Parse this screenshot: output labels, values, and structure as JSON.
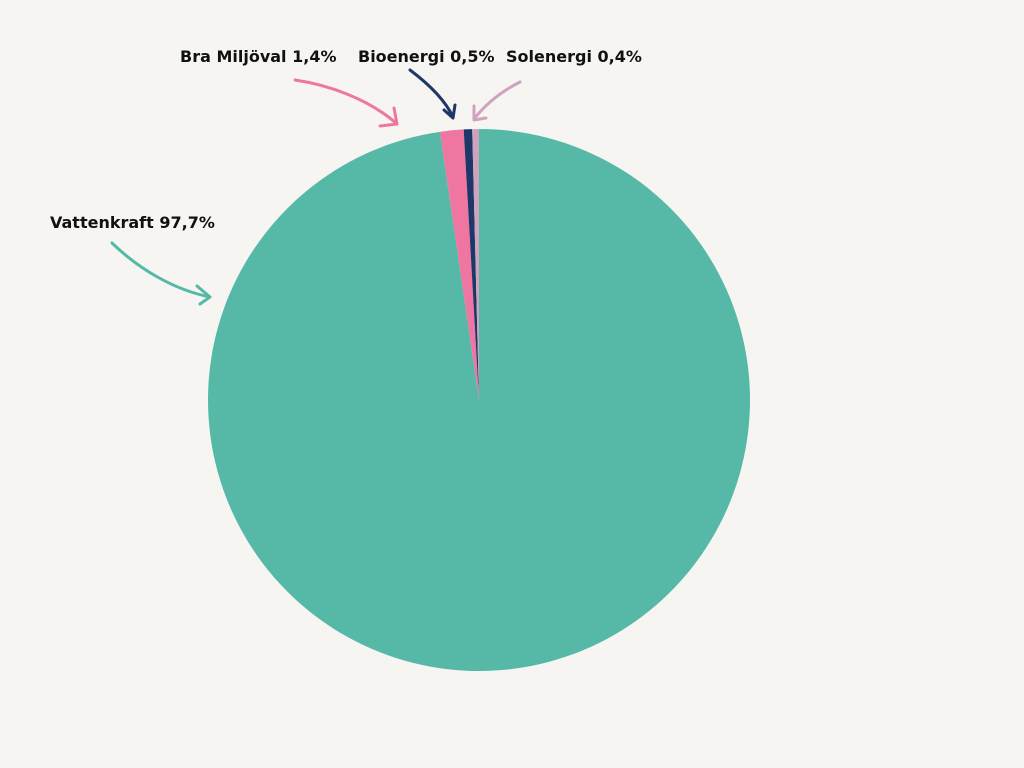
{
  "chart_data": {
    "type": "pie",
    "start_angle_deg": 0,
    "direction": "clockwise",
    "slices": [
      {
        "label": "Vattenkraft 97,7%",
        "name": "Vattenkraft",
        "value": 97.7,
        "color": "#56b9a8"
      },
      {
        "label": "Bra Miljöval 1,4%",
        "name": "Bra Miljöval",
        "value": 1.4,
        "color": "#ef76a0"
      },
      {
        "label": "Bioenergi 0,5%",
        "name": "Bioenergi",
        "value": 0.5,
        "color": "#1c3768"
      },
      {
        "label": "Solenergi 0,4%",
        "name": "Solenergi",
        "value": 0.4,
        "color": "#cfa3bd"
      }
    ]
  }
}
